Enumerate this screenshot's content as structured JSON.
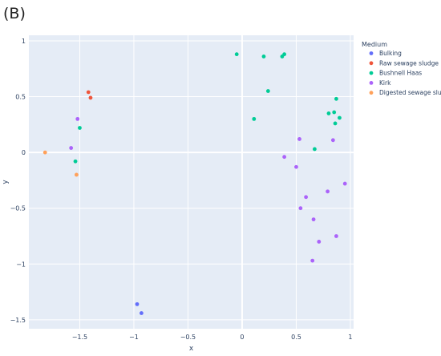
{
  "panel_label": "(B)",
  "chart_data": {
    "type": "scatter",
    "xlabel": "x",
    "ylabel": "y",
    "xlim": [
      -1.97,
      1.03
    ],
    "ylim": [
      -1.58,
      1.05
    ],
    "xticks": [
      -1.5,
      -1,
      -0.5,
      0,
      0.5,
      1
    ],
    "yticks": [
      -1.5,
      -1,
      -0.5,
      0,
      0.5,
      1
    ],
    "xtick_labels": [
      "−1.5",
      "−1",
      "−0.5",
      "0",
      "0.5",
      "1"
    ],
    "ytick_labels": [
      "−1.5",
      "−1",
      "−0.5",
      "0",
      "0.5",
      "1"
    ],
    "grid": true,
    "background": "#e5ecf6",
    "legend": {
      "title": "Medium",
      "placement": "right"
    },
    "series": [
      {
        "name": "Bulking",
        "color": "#636efa",
        "points": [
          [
            -0.97,
            -1.36
          ],
          [
            -0.93,
            -1.44
          ]
        ]
      },
      {
        "name": "Raw sewage sludge",
        "color": "#ef553b",
        "points": [
          [
            -1.42,
            0.54
          ],
          [
            -1.4,
            0.49
          ]
        ]
      },
      {
        "name": "Bushnell Haas",
        "color": "#00cc96",
        "points": [
          [
            -1.5,
            0.22
          ],
          [
            -1.54,
            -0.08
          ],
          [
            -0.05,
            0.88
          ],
          [
            0.2,
            0.86
          ],
          [
            0.37,
            0.86
          ],
          [
            0.39,
            0.88
          ],
          [
            0.24,
            0.55
          ],
          [
            0.11,
            0.3
          ],
          [
            0.87,
            0.48
          ],
          [
            0.8,
            0.35
          ],
          [
            0.85,
            0.36
          ],
          [
            0.9,
            0.31
          ],
          [
            0.86,
            0.26
          ],
          [
            0.67,
            0.03
          ]
        ]
      },
      {
        "name": "Kirk",
        "color": "#ab63fa",
        "points": [
          [
            -1.52,
            0.3
          ],
          [
            -1.58,
            0.04
          ],
          [
            0.53,
            0.12
          ],
          [
            0.84,
            0.11
          ],
          [
            0.39,
            -0.04
          ],
          [
            0.5,
            -0.13
          ],
          [
            0.95,
            -0.28
          ],
          [
            0.79,
            -0.35
          ],
          [
            0.59,
            -0.4
          ],
          [
            0.54,
            -0.5
          ],
          [
            0.66,
            -0.6
          ],
          [
            0.71,
            -0.8
          ],
          [
            0.87,
            -0.75
          ],
          [
            0.65,
            -0.97
          ]
        ]
      },
      {
        "name": "Digested sewage sludge",
        "color": "#ffa15a",
        "points": [
          [
            -1.82,
            0.0
          ],
          [
            -1.53,
            -0.2
          ]
        ]
      }
    ]
  }
}
